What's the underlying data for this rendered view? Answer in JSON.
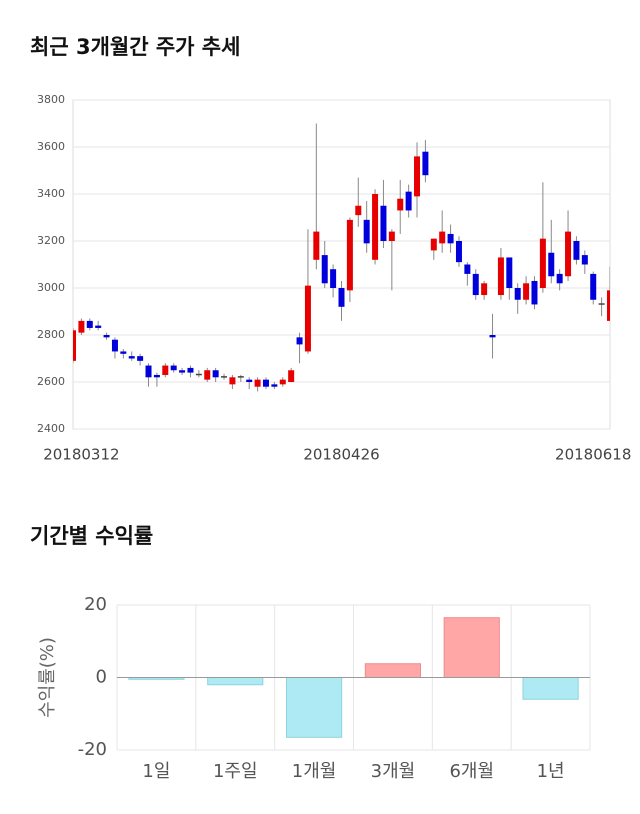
{
  "chart_data": [
    {
      "type": "candlestick",
      "title": "최근 3개월간 주가 추세",
      "categories": [
        null,
        "20180312",
        null,
        null,
        null,
        null,
        null,
        null,
        null,
        null,
        null,
        null,
        null,
        null,
        null,
        null,
        null,
        null,
        null,
        null,
        null,
        null,
        null,
        null,
        null,
        null,
        null,
        null,
        null,
        null,
        null,
        null,
        "20180426",
        null,
        null,
        null,
        null,
        null,
        null,
        null,
        null,
        null,
        null,
        null,
        null,
        null,
        null,
        null,
        null,
        null,
        null,
        null,
        null,
        null,
        null,
        null,
        null,
        null,
        null,
        null,
        null,
        null,
        "20180618",
        null,
        null
      ],
      "open": [
        2690,
        2810,
        2860,
        2840,
        2800,
        2780,
        2730,
        2710,
        2710,
        2670,
        2630,
        2630,
        2670,
        2650,
        2660,
        2635,
        2610,
        2650,
        2625,
        2590,
        2625,
        2610,
        2580,
        2610,
        2590,
        2590,
        2600,
        2790,
        2730,
        3120,
        3140,
        3080,
        3000,
        2990,
        3310,
        3290,
        3120,
        3350,
        3200,
        3330,
        3410,
        3390,
        3580,
        3160,
        3190,
        3230,
        3200,
        3100,
        3060,
        2970,
        2800,
        2970,
        3130,
        3000,
        2950,
        3030,
        3000,
        3150,
        3060,
        3050,
        3200,
        3140,
        3060,
        2935,
        2860
      ],
      "high": [
        2830,
        2870,
        2870,
        2860,
        2810,
        2790,
        2740,
        2730,
        2720,
        2680,
        2640,
        2680,
        2680,
        2660,
        2670,
        2650,
        2660,
        2660,
        2635,
        2630,
        2630,
        2620,
        2620,
        2620,
        2600,
        2620,
        2660,
        2810,
        3250,
        3700,
        3200,
        3100,
        3030,
        3300,
        3470,
        3370,
        3420,
        3460,
        3250,
        3460,
        3440,
        3620,
        3630,
        3210,
        3330,
        3270,
        3220,
        3110,
        3080,
        3030,
        2890,
        3170,
        3130,
        3020,
        3050,
        3050,
        3450,
        3290,
        3080,
        3330,
        3220,
        3160,
        3070,
        2960,
        3090
      ],
      "low": [
        2680,
        2800,
        2820,
        2820,
        2780,
        2700,
        2700,
        2690,
        2670,
        2580,
        2580,
        2620,
        2640,
        2630,
        2620,
        2620,
        2600,
        2600,
        2610,
        2570,
        2600,
        2570,
        2560,
        2570,
        2570,
        2580,
        2600,
        2680,
        2720,
        3080,
        3000,
        2960,
        2860,
        2940,
        3260,
        3150,
        3100,
        3170,
        2990,
        3230,
        3300,
        3300,
        3450,
        3120,
        3150,
        3150,
        3090,
        3010,
        2950,
        2950,
        2700,
        2950,
        2950,
        2890,
        2930,
        2910,
        2980,
        3020,
        2990,
        3030,
        3100,
        3060,
        2930,
        2880,
        2860
      ],
      "close": [
        2820,
        2860,
        2830,
        2830,
        2790,
        2730,
        2720,
        2700,
        2690,
        2620,
        2620,
        2670,
        2650,
        2640,
        2640,
        2630,
        2650,
        2620,
        2620,
        2620,
        2620,
        2600,
        2610,
        2580,
        2580,
        2610,
        2650,
        2760,
        3010,
        3240,
        3020,
        3000,
        2920,
        3290,
        3350,
        3190,
        3400,
        3200,
        3240,
        3380,
        3330,
        3560,
        3480,
        3210,
        3240,
        3190,
        3110,
        3060,
        2970,
        3020,
        2790,
        3130,
        3000,
        2950,
        3020,
        2930,
        3210,
        3050,
        3020,
        3240,
        3120,
        3100,
        2950,
        2930,
        2990
      ],
      "up_color": "#e60000",
      "down_color": "#0000dd",
      "ylim": [
        2400,
        3800
      ],
      "yticks": [
        2400,
        2600,
        2800,
        3000,
        3200,
        3400,
        3600,
        3800
      ],
      "grid": true
    },
    {
      "type": "bar",
      "title": "기간별 수익률",
      "ylabel": "수익률(%)",
      "categories": [
        "1일",
        "1주일",
        "1개월",
        "3개월",
        "6개월",
        "1년"
      ],
      "values": [
        -0.5,
        -2,
        -16.5,
        3.8,
        16.5,
        -6
      ],
      "positive_color": "#ffa6a6",
      "negative_color": "#aeeaf3",
      "ylim": [
        -20,
        20
      ],
      "yticks": [
        -20,
        0,
        20
      ],
      "grid": true
    }
  ]
}
